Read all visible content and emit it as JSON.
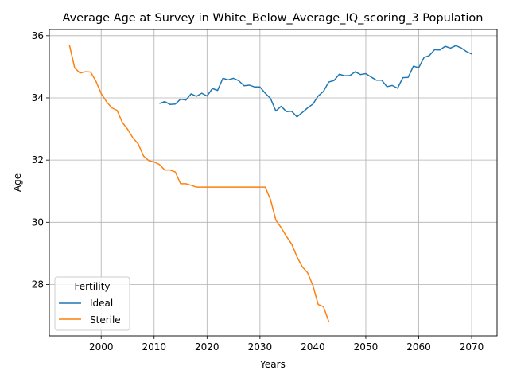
{
  "chart_data": {
    "type": "line",
    "title": "Average Age at Survey in White_Below_Average_IQ_scoring_3 Population",
    "xlabel": "Years",
    "ylabel": "Age",
    "xlim": [
      1990.2,
      2074.8
    ],
    "ylim": [
      26.35,
      36.2
    ],
    "xticks": [
      2000,
      2010,
      2020,
      2030,
      2040,
      2050,
      2060,
      2070
    ],
    "yticks": [
      28,
      30,
      32,
      34,
      36
    ],
    "grid": true,
    "legend": {
      "title": "Fertility",
      "placement": "lower-left"
    },
    "series": [
      {
        "name": "Ideal",
        "color": "#1f77b4",
        "x": [
          2011,
          2012,
          2013,
          2014,
          2015,
          2016,
          2017,
          2018,
          2019,
          2020,
          2021,
          2022,
          2023,
          2024,
          2025,
          2026,
          2027,
          2028,
          2029,
          2030,
          2031,
          2032,
          2033,
          2034,
          2035,
          2036,
          2037,
          2038,
          2039,
          2040,
          2041,
          2042,
          2043,
          2044,
          2045,
          2046,
          2047,
          2048,
          2049,
          2050,
          2051,
          2052,
          2053,
          2054,
          2055,
          2056,
          2057,
          2058,
          2059,
          2060,
          2061,
          2062,
          2063,
          2064,
          2065,
          2066,
          2067,
          2068,
          2069,
          2070
        ],
        "y": [
          33.82,
          33.88,
          33.79,
          33.8,
          33.96,
          33.93,
          34.13,
          34.05,
          34.15,
          34.06,
          34.3,
          34.24,
          34.63,
          34.58,
          34.63,
          34.55,
          34.39,
          34.41,
          34.35,
          34.35,
          34.15,
          33.98,
          33.58,
          33.73,
          33.56,
          33.57,
          33.39,
          33.53,
          33.68,
          33.8,
          34.06,
          34.21,
          34.51,
          34.56,
          34.76,
          34.71,
          34.72,
          34.84,
          34.75,
          34.78,
          34.67,
          34.57,
          34.57,
          34.36,
          34.4,
          34.31,
          34.65,
          34.66,
          35.02,
          34.97,
          35.3,
          35.36,
          35.55,
          35.54,
          35.66,
          35.6,
          35.68,
          35.61,
          35.49,
          35.41
        ]
      },
      {
        "name": "Sterile",
        "color": "#ff7f0e",
        "x": [
          1994,
          1995,
          1996,
          1997,
          1998,
          1999,
          2000,
          2001,
          2002,
          2003,
          2004,
          2005,
          2006,
          2007,
          2008,
          2009,
          2010,
          2011,
          2012,
          2013,
          2014,
          2015,
          2016,
          2017,
          2018,
          2019,
          2020,
          2021,
          2022,
          2023,
          2024,
          2025,
          2026,
          2027,
          2028,
          2029,
          2030,
          2031,
          2032,
          2033,
          2034,
          2035,
          2036,
          2037,
          2038,
          2039,
          2040,
          2041,
          2042,
          2043
        ],
        "y": [
          35.7,
          34.96,
          34.8,
          34.84,
          34.83,
          34.54,
          34.14,
          33.88,
          33.68,
          33.6,
          33.21,
          32.99,
          32.71,
          32.52,
          32.13,
          31.98,
          31.94,
          31.86,
          31.68,
          31.68,
          31.62,
          31.24,
          31.24,
          31.19,
          31.13,
          31.13,
          31.13,
          31.13,
          31.13,
          31.13,
          31.13,
          31.13,
          31.13,
          31.13,
          31.13,
          31.13,
          31.13,
          31.13,
          30.73,
          30.07,
          29.83,
          29.55,
          29.3,
          28.89,
          28.57,
          28.38,
          27.97,
          27.36,
          27.29,
          26.81
        ]
      }
    ]
  }
}
